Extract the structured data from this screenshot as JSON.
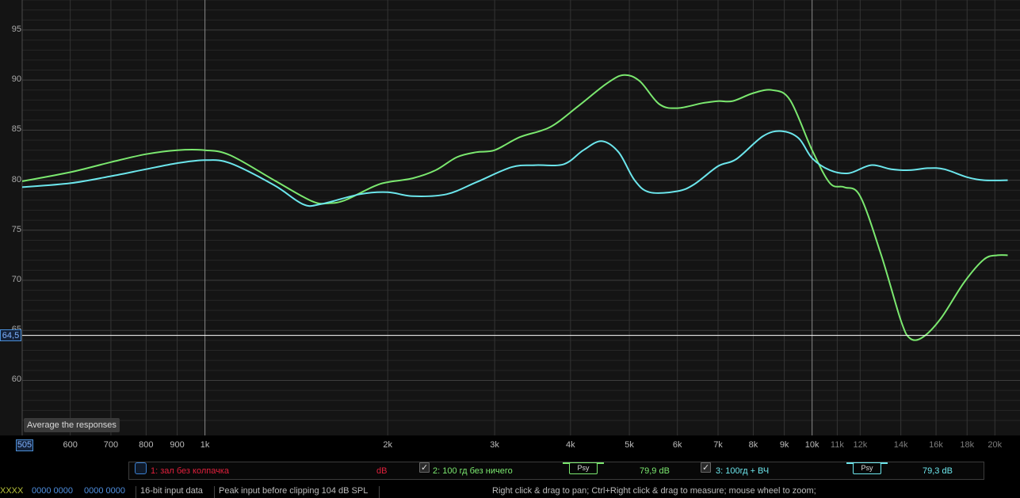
{
  "chart_data": {
    "type": "line",
    "x_scale": "log",
    "xlim": [
      500,
      22000
    ],
    "ylim": [
      54.5,
      98
    ],
    "y_ticks": [
      95,
      90,
      85,
      80,
      75,
      70,
      65,
      60
    ],
    "x_ticks": [
      {
        "v": 600,
        "label": "600"
      },
      {
        "v": 700,
        "label": "700"
      },
      {
        "v": 800,
        "label": "800"
      },
      {
        "v": 900,
        "label": "900"
      },
      {
        "v": 1000,
        "label": "1k"
      },
      {
        "v": 2000,
        "label": "2k"
      },
      {
        "v": 3000,
        "label": "3k"
      },
      {
        "v": 4000,
        "label": "4k"
      },
      {
        "v": 5000,
        "label": "5k"
      },
      {
        "v": 6000,
        "label": "6k"
      },
      {
        "v": 7000,
        "label": "7k"
      },
      {
        "v": 8000,
        "label": "8k"
      },
      {
        "v": 9000,
        "label": "9k"
      },
      {
        "v": 10000,
        "label": "10k"
      },
      {
        "v": 11000,
        "label": "11k"
      },
      {
        "v": 12000,
        "label": "12k"
      },
      {
        "v": 14000,
        "label": "14k"
      },
      {
        "v": 16000,
        "label": "16k"
      },
      {
        "v": 18000,
        "label": "18k"
      },
      {
        "v": 20000,
        "label": "20k"
      }
    ],
    "grid": true,
    "cursor": {
      "y": 64.5,
      "y_label": "64,5",
      "x_label": "505"
    },
    "series": [
      {
        "name": "2: 100 гд без ничего",
        "color": "#7be86f",
        "points": [
          [
            500,
            79.9
          ],
          [
            600,
            80.8
          ],
          [
            700,
            81.8
          ],
          [
            800,
            82.6
          ],
          [
            900,
            83.0
          ],
          [
            1000,
            83.0
          ],
          [
            1100,
            82.5
          ],
          [
            1300,
            80.0
          ],
          [
            1500,
            77.9
          ],
          [
            1600,
            77.7
          ],
          [
            1700,
            78.0
          ],
          [
            1900,
            79.4
          ],
          [
            2000,
            79.8
          ],
          [
            2200,
            80.2
          ],
          [
            2400,
            81.0
          ],
          [
            2600,
            82.3
          ],
          [
            2800,
            82.8
          ],
          [
            3000,
            83.0
          ],
          [
            3300,
            84.3
          ],
          [
            3700,
            85.3
          ],
          [
            4100,
            87.3
          ],
          [
            4600,
            89.7
          ],
          [
            4900,
            90.5
          ],
          [
            5200,
            89.9
          ],
          [
            5600,
            87.6
          ],
          [
            6000,
            87.2
          ],
          [
            6600,
            87.7
          ],
          [
            7000,
            87.9
          ],
          [
            7400,
            87.9
          ],
          [
            8000,
            88.7
          ],
          [
            8600,
            89.0
          ],
          [
            9200,
            88.0
          ],
          [
            10000,
            83.0
          ],
          [
            10700,
            79.7
          ],
          [
            11300,
            79.3
          ],
          [
            12000,
            78.4
          ],
          [
            13000,
            72.5
          ],
          [
            14000,
            66.0
          ],
          [
            14500,
            64.2
          ],
          [
            15200,
            64.3
          ],
          [
            16300,
            66.2
          ],
          [
            17800,
            69.8
          ],
          [
            19200,
            72.1
          ],
          [
            20200,
            72.5
          ],
          [
            21000,
            72.5
          ]
        ]
      },
      {
        "name": "3: 100гд + ВЧ",
        "color": "#6ce6ec",
        "points": [
          [
            500,
            79.3
          ],
          [
            600,
            79.7
          ],
          [
            700,
            80.4
          ],
          [
            800,
            81.1
          ],
          [
            900,
            81.7
          ],
          [
            1000,
            82.0
          ],
          [
            1100,
            81.7
          ],
          [
            1300,
            79.5
          ],
          [
            1450,
            77.6
          ],
          [
            1550,
            77.6
          ],
          [
            1800,
            78.6
          ],
          [
            2000,
            78.8
          ],
          [
            2200,
            78.4
          ],
          [
            2500,
            78.6
          ],
          [
            2800,
            79.8
          ],
          [
            3200,
            81.3
          ],
          [
            3500,
            81.5
          ],
          [
            3900,
            81.6
          ],
          [
            4200,
            83.0
          ],
          [
            4500,
            83.9
          ],
          [
            4800,
            82.8
          ],
          [
            5100,
            80.0
          ],
          [
            5400,
            78.8
          ],
          [
            6000,
            78.9
          ],
          [
            6400,
            79.6
          ],
          [
            7000,
            81.4
          ],
          [
            7500,
            82.1
          ],
          [
            8300,
            84.4
          ],
          [
            8900,
            84.9
          ],
          [
            9500,
            84.2
          ],
          [
            10000,
            82.2
          ],
          [
            10700,
            81.0
          ],
          [
            11500,
            80.7
          ],
          [
            12500,
            81.5
          ],
          [
            13500,
            81.1
          ],
          [
            14500,
            81.0
          ],
          [
            15500,
            81.2
          ],
          [
            16500,
            81.1
          ],
          [
            18000,
            80.3
          ],
          [
            19200,
            80.0
          ],
          [
            21000,
            80.0
          ]
        ]
      }
    ]
  },
  "tooltip": "Average the responses",
  "legend": {
    "items": [
      {
        "label": "1: зал без колпачка",
        "unit": "dB",
        "checked": false,
        "color": "#e0203c"
      },
      {
        "label": "2: 100 гд без ничего",
        "checked": true,
        "color": "#7be86f",
        "psy": "Psy",
        "value": "79,9 dB"
      },
      {
        "label": "3: 100гд + ВЧ",
        "checked": true,
        "color": "#6ce6ec",
        "psy": "Psy",
        "value": "79,3 dB"
      }
    ]
  },
  "status": {
    "meter_left": "XXXX",
    "meter_a": "0000 0000",
    "meter_b": "0000 0000",
    "input": "16-bit input data",
    "peak": "Peak input before clipping 104 dB SPL",
    "hint": "Right click & drag to pan; Ctrl+Right click & drag to measure; mouse wheel to zoom;"
  }
}
